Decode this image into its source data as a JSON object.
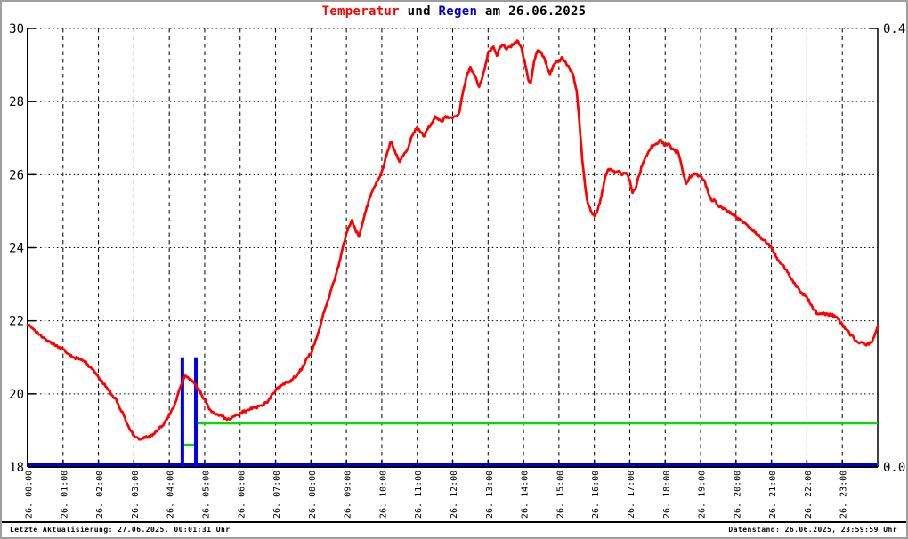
{
  "title": {
    "temperatur": "Temperatur",
    "und": " und ",
    "regen": "Regen",
    "date": " am 26.06.2025"
  },
  "footer": {
    "left": "Letzte Aktualisierung: 27.06.2025, 00:01:31 Uhr",
    "right": "Datenstand: 26.06.2025, 23:59:59 Uhr"
  },
  "colors": {
    "temperature_line": "#ff0000",
    "rain_bar": "#0000ee",
    "rain_baseline": "#0000cd",
    "cumulative_rain": "#00dd00",
    "grid": "#000000",
    "axis": "#000000",
    "title_regen": "#0000cc",
    "frame": "#9e9e9e"
  },
  "chart_data": {
    "type": "line",
    "title": "Temperatur und Regen am 26.06.2025",
    "grid": true,
    "x_axis": {
      "hours_range": [
        0,
        24
      ],
      "tick_hours": [
        0,
        1,
        2,
        3,
        4,
        5,
        6,
        7,
        8,
        9,
        10,
        11,
        12,
        13,
        14,
        15,
        16,
        17,
        18,
        19,
        20,
        21,
        22,
        23
      ],
      "tick_labels": [
        "26. 00:00",
        "26. 01:00",
        "26. 02:00",
        "26. 03:00",
        "26. 04:00",
        "26. 05:00",
        "26. 06:00",
        "26. 07:00",
        "26. 08:00",
        "26. 09:00",
        "26. 10:00",
        "26. 11:00",
        "26. 12:00",
        "26. 13:00",
        "26. 14:00",
        "26. 15:00",
        "26. 16:00",
        "26. 17:00",
        "26. 18:00",
        "26. 19:00",
        "26. 20:00",
        "26. 21:00",
        "26. 22:00",
        "26. 23:00"
      ]
    },
    "y_axis_left": {
      "series": "Temperatur",
      "range": [
        18,
        30
      ],
      "tick_values": [
        30,
        28,
        26,
        24,
        22,
        20,
        18
      ],
      "tick_labels": [
        "30",
        "28",
        "26",
        "24",
        "22",
        "20",
        "18"
      ]
    },
    "y_axis_right": {
      "series": "Regen",
      "range": [
        0.0,
        0.4
      ],
      "tick_values": [
        0.4,
        0.0
      ],
      "tick_labels": [
        "0.4",
        "0.0"
      ]
    },
    "temperature_series": {
      "name": "Temperatur",
      "color": "#ff0000",
      "points": [
        [
          0.0,
          21.9
        ],
        [
          0.1,
          21.82
        ],
        [
          0.2,
          21.75
        ],
        [
          0.3,
          21.65
        ],
        [
          0.4,
          21.55
        ],
        [
          0.5,
          21.5
        ],
        [
          0.6,
          21.45
        ],
        [
          0.7,
          21.38
        ],
        [
          0.8,
          21.32
        ],
        [
          0.9,
          21.28
        ],
        [
          1.0,
          21.22
        ],
        [
          1.1,
          21.12
        ],
        [
          1.2,
          21.05
        ],
        [
          1.3,
          21.0
        ],
        [
          1.4,
          20.97
        ],
        [
          1.5,
          20.93
        ],
        [
          1.6,
          20.88
        ],
        [
          1.7,
          20.8
        ],
        [
          1.8,
          20.7
        ],
        [
          1.9,
          20.58
        ],
        [
          2.0,
          20.45
        ],
        [
          2.1,
          20.35
        ],
        [
          2.2,
          20.2
        ],
        [
          2.3,
          20.1
        ],
        [
          2.4,
          19.95
        ],
        [
          2.5,
          19.85
        ],
        [
          2.6,
          19.6
        ],
        [
          2.7,
          19.45
        ],
        [
          2.8,
          19.2
        ],
        [
          2.9,
          19.0
        ],
        [
          3.0,
          18.87
        ],
        [
          3.1,
          18.8
        ],
        [
          3.2,
          18.75
        ],
        [
          3.3,
          18.82
        ],
        [
          3.4,
          18.8
        ],
        [
          3.5,
          18.88
        ],
        [
          3.6,
          18.95
        ],
        [
          3.7,
          19.02
        ],
        [
          3.8,
          19.12
        ],
        [
          3.9,
          19.28
        ],
        [
          4.0,
          19.45
        ],
        [
          4.1,
          19.6
        ],
        [
          4.2,
          19.82
        ],
        [
          4.3,
          20.15
        ],
        [
          4.4,
          20.4
        ],
        [
          4.45,
          20.5
        ],
        [
          4.5,
          20.45
        ],
        [
          4.6,
          20.4
        ],
        [
          4.7,
          20.3
        ],
        [
          4.8,
          20.15
        ],
        [
          4.9,
          20.0
        ],
        [
          5.0,
          19.85
        ],
        [
          5.1,
          19.65
        ],
        [
          5.2,
          19.5
        ],
        [
          5.3,
          19.45
        ],
        [
          5.4,
          19.4
        ],
        [
          5.5,
          19.38
        ],
        [
          5.6,
          19.33
        ],
        [
          5.7,
          19.3
        ],
        [
          5.8,
          19.38
        ],
        [
          5.9,
          19.42
        ],
        [
          6.0,
          19.48
        ],
        [
          6.2,
          19.55
        ],
        [
          6.4,
          19.62
        ],
        [
          6.6,
          19.68
        ],
        [
          6.8,
          19.82
        ],
        [
          7.0,
          20.1
        ],
        [
          7.2,
          20.25
        ],
        [
          7.4,
          20.35
        ],
        [
          7.6,
          20.5
        ],
        [
          7.75,
          20.7
        ],
        [
          7.9,
          21.0
        ],
        [
          8.0,
          21.1
        ],
        [
          8.1,
          21.35
        ],
        [
          8.2,
          21.65
        ],
        [
          8.3,
          22.0
        ],
        [
          8.4,
          22.35
        ],
        [
          8.5,
          22.6
        ],
        [
          8.6,
          22.95
        ],
        [
          8.7,
          23.25
        ],
        [
          8.8,
          23.6
        ],
        [
          8.9,
          24.0
        ],
        [
          9.0,
          24.4
        ],
        [
          9.1,
          24.6
        ],
        [
          9.15,
          24.75
        ],
        [
          9.25,
          24.5
        ],
        [
          9.35,
          24.3
        ],
        [
          9.45,
          24.65
        ],
        [
          9.55,
          25.0
        ],
        [
          9.65,
          25.35
        ],
        [
          9.75,
          25.6
        ],
        [
          9.85,
          25.8
        ],
        [
          9.95,
          25.95
        ],
        [
          10.05,
          26.2
        ],
        [
          10.15,
          26.6
        ],
        [
          10.25,
          26.9
        ],
        [
          10.35,
          26.7
        ],
        [
          10.45,
          26.45
        ],
        [
          10.5,
          26.35
        ],
        [
          10.6,
          26.5
        ],
        [
          10.7,
          26.65
        ],
        [
          10.8,
          26.9
        ],
        [
          10.9,
          27.15
        ],
        [
          11.0,
          27.3
        ],
        [
          11.1,
          27.15
        ],
        [
          11.2,
          27.05
        ],
        [
          11.3,
          27.25
        ],
        [
          11.4,
          27.4
        ],
        [
          11.5,
          27.6
        ],
        [
          11.6,
          27.5
        ],
        [
          11.7,
          27.45
        ],
        [
          11.8,
          27.6
        ],
        [
          11.9,
          27.55
        ],
        [
          12.0,
          27.55
        ],
        [
          12.1,
          27.6
        ],
        [
          12.2,
          27.75
        ],
        [
          12.3,
          28.3
        ],
        [
          12.4,
          28.7
        ],
        [
          12.5,
          28.95
        ],
        [
          12.6,
          28.75
        ],
        [
          12.7,
          28.5
        ],
        [
          12.75,
          28.4
        ],
        [
          12.85,
          28.7
        ],
        [
          12.95,
          29.1
        ],
        [
          13.0,
          29.35
        ],
        [
          13.1,
          29.45
        ],
        [
          13.15,
          29.5
        ],
        [
          13.25,
          29.25
        ],
        [
          13.35,
          29.5
        ],
        [
          13.45,
          29.55
        ],
        [
          13.5,
          29.45
        ],
        [
          13.6,
          29.5
        ],
        [
          13.7,
          29.55
        ],
        [
          13.8,
          29.62
        ],
        [
          13.85,
          29.65
        ],
        [
          13.95,
          29.45
        ],
        [
          14.05,
          29.0
        ],
        [
          14.15,
          28.55
        ],
        [
          14.2,
          28.5
        ],
        [
          14.3,
          29.1
        ],
        [
          14.4,
          29.4
        ],
        [
          14.5,
          29.35
        ],
        [
          14.6,
          29.15
        ],
        [
          14.7,
          28.85
        ],
        [
          14.75,
          28.75
        ],
        [
          14.85,
          29.0
        ],
        [
          14.95,
          29.1
        ],
        [
          15.05,
          29.15
        ],
        [
          15.1,
          29.2
        ],
        [
          15.2,
          29.05
        ],
        [
          15.3,
          28.9
        ],
        [
          15.4,
          28.75
        ],
        [
          15.5,
          28.3
        ],
        [
          15.58,
          27.4
        ],
        [
          15.66,
          26.4
        ],
        [
          15.74,
          25.7
        ],
        [
          15.82,
          25.2
        ],
        [
          15.9,
          25.0
        ],
        [
          16.0,
          24.87
        ],
        [
          16.1,
          25.05
        ],
        [
          16.2,
          25.4
        ],
        [
          16.3,
          25.9
        ],
        [
          16.4,
          26.15
        ],
        [
          16.5,
          26.1
        ],
        [
          16.6,
          26.05
        ],
        [
          16.7,
          26.1
        ],
        [
          16.8,
          26.0
        ],
        [
          16.9,
          26.05
        ],
        [
          17.0,
          25.85
        ],
        [
          17.08,
          25.5
        ],
        [
          17.16,
          25.6
        ],
        [
          17.25,
          25.95
        ],
        [
          17.35,
          26.25
        ],
        [
          17.45,
          26.5
        ],
        [
          17.55,
          26.65
        ],
        [
          17.65,
          26.8
        ],
        [
          17.75,
          26.85
        ],
        [
          17.85,
          26.95
        ],
        [
          17.95,
          26.85
        ],
        [
          18.0,
          26.8
        ],
        [
          18.1,
          26.85
        ],
        [
          18.2,
          26.7
        ],
        [
          18.3,
          26.6
        ],
        [
          18.35,
          26.65
        ],
        [
          18.45,
          26.3
        ],
        [
          18.55,
          25.9
        ],
        [
          18.6,
          25.75
        ],
        [
          18.7,
          25.95
        ],
        [
          18.8,
          26.0
        ],
        [
          18.9,
          26.0
        ],
        [
          19.0,
          25.95
        ],
        [
          19.1,
          25.85
        ],
        [
          19.2,
          25.55
        ],
        [
          19.3,
          25.3
        ],
        [
          19.4,
          25.3
        ],
        [
          19.5,
          25.15
        ],
        [
          19.6,
          25.1
        ],
        [
          19.7,
          25.05
        ],
        [
          19.8,
          25.0
        ],
        [
          19.9,
          24.9
        ],
        [
          20.0,
          24.85
        ],
        [
          20.2,
          24.68
        ],
        [
          20.4,
          24.55
        ],
        [
          20.6,
          24.35
        ],
        [
          20.8,
          24.2
        ],
        [
          21.0,
          24.0
        ],
        [
          21.2,
          23.65
        ],
        [
          21.4,
          23.4
        ],
        [
          21.6,
          23.1
        ],
        [
          21.8,
          22.8
        ],
        [
          22.0,
          22.65
        ],
        [
          22.1,
          22.45
        ],
        [
          22.2,
          22.3
        ],
        [
          22.3,
          22.2
        ],
        [
          22.5,
          22.2
        ],
        [
          22.7,
          22.15
        ],
        [
          22.85,
          22.1
        ],
        [
          23.0,
          21.9
        ],
        [
          23.2,
          21.65
        ],
        [
          23.4,
          21.45
        ],
        [
          23.6,
          21.38
        ],
        [
          23.75,
          21.35
        ],
        [
          23.85,
          21.45
        ],
        [
          23.95,
          21.7
        ],
        [
          24.0,
          21.85
        ]
      ]
    },
    "rain_bars": {
      "name": "Regen",
      "color": "#0000ee",
      "points": [
        [
          4.37,
          0.1
        ],
        [
          4.75,
          0.1
        ]
      ]
    },
    "rain_cumulative": {
      "name": "Regen kumuliert",
      "color": "#00dd00",
      "segments": [
        [
          4.37,
          4.75,
          0.02
        ],
        [
          4.75,
          24.0,
          0.04
        ]
      ]
    },
    "rain_baseline": {
      "name": "Regen Basislinie",
      "color": "#0000cd",
      "value": 0.0
    }
  }
}
